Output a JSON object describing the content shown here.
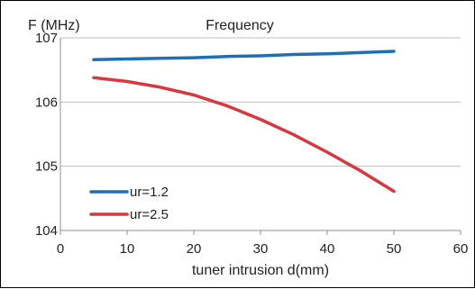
{
  "chart_data": {
    "type": "line",
    "title": "Frequency",
    "ylabel": "F (MHz)",
    "xlabel": "tuner intrusion d(mm)",
    "xlim": [
      0,
      60
    ],
    "ylim": [
      104,
      107
    ],
    "xticks": [
      "0",
      "10",
      "20",
      "30",
      "40",
      "50",
      "60"
    ],
    "yticks": [
      "104",
      "105",
      "106",
      "107"
    ],
    "grid": "horizontal",
    "legend_position": "bottom-left",
    "series": [
      {
        "name": "ur=1.2",
        "color": "#1f6fb5",
        "x": [
          5,
          10,
          15,
          20,
          25,
          30,
          35,
          40,
          45,
          50
        ],
        "y": [
          106.66,
          106.67,
          106.68,
          106.69,
          106.71,
          106.72,
          106.74,
          106.75,
          106.77,
          106.79
        ]
      },
      {
        "name": "ur=2.5",
        "color": "#d9363e",
        "x": [
          5,
          10,
          15,
          20,
          25,
          30,
          35,
          40,
          45,
          50
        ],
        "y": [
          106.38,
          106.32,
          106.23,
          106.11,
          105.94,
          105.73,
          105.49,
          105.22,
          104.93,
          104.61
        ]
      }
    ]
  }
}
